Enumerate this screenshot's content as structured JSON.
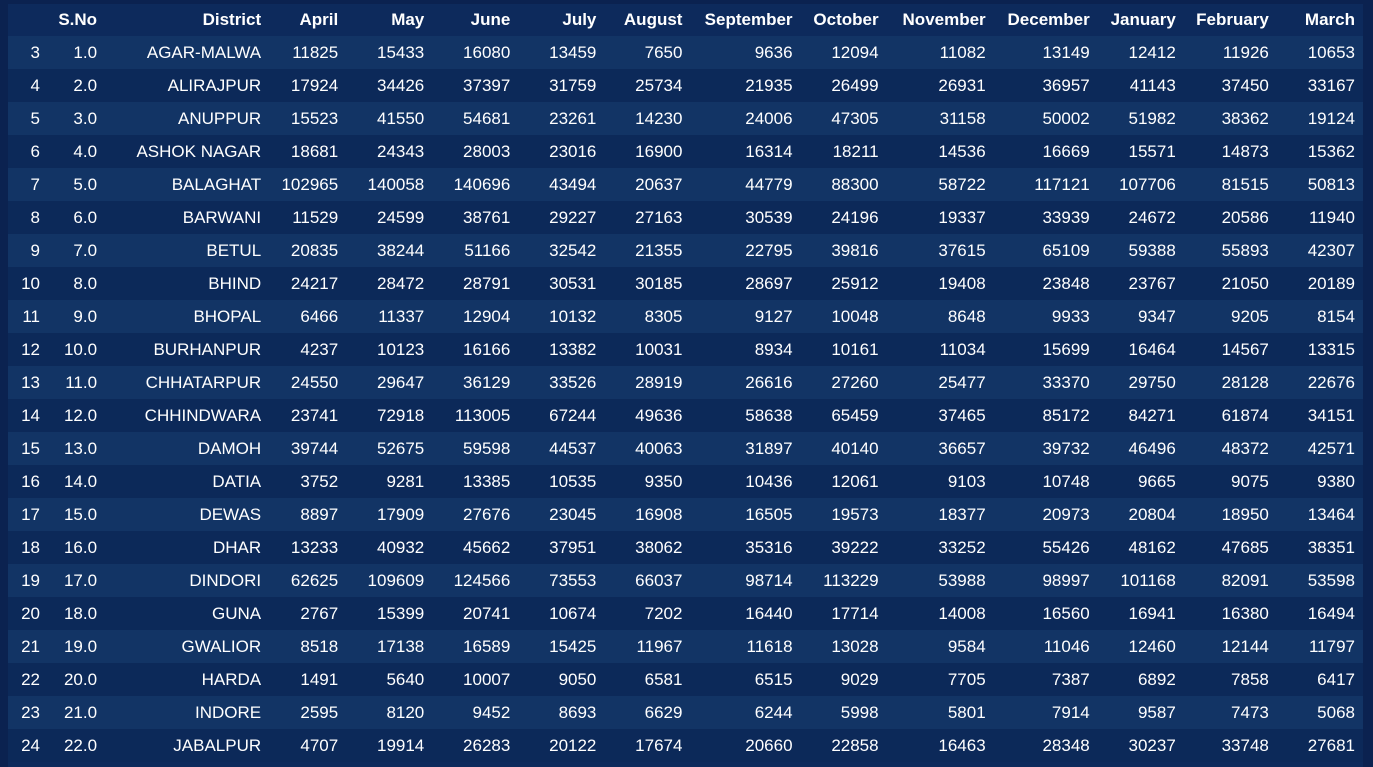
{
  "table": {
    "columns": [
      "",
      "S.No",
      "District",
      "April",
      "May",
      "June",
      "July",
      "August",
      "September",
      "October",
      "November",
      "December",
      "January",
      "February",
      "March"
    ],
    "rows": [
      [
        "3",
        "1.0",
        "AGAR-MALWA",
        "11825",
        "15433",
        "16080",
        "13459",
        "7650",
        "9636",
        "12094",
        "11082",
        "13149",
        "12412",
        "11926",
        "10653"
      ],
      [
        "4",
        "2.0",
        "ALIRAJPUR",
        "17924",
        "34426",
        "37397",
        "31759",
        "25734",
        "21935",
        "26499",
        "26931",
        "36957",
        "41143",
        "37450",
        "33167"
      ],
      [
        "5",
        "3.0",
        "ANUPPUR",
        "15523",
        "41550",
        "54681",
        "23261",
        "14230",
        "24006",
        "47305",
        "31158",
        "50002",
        "51982",
        "38362",
        "19124"
      ],
      [
        "6",
        "4.0",
        "ASHOK NAGAR",
        "18681",
        "24343",
        "28003",
        "23016",
        "16900",
        "16314",
        "18211",
        "14536",
        "16669",
        "15571",
        "14873",
        "15362"
      ],
      [
        "7",
        "5.0",
        "BALAGHAT",
        "102965",
        "140058",
        "140696",
        "43494",
        "20637",
        "44779",
        "88300",
        "58722",
        "117121",
        "107706",
        "81515",
        "50813"
      ],
      [
        "8",
        "6.0",
        "BARWANI",
        "11529",
        "24599",
        "38761",
        "29227",
        "27163",
        "30539",
        "24196",
        "19337",
        "33939",
        "24672",
        "20586",
        "11940"
      ],
      [
        "9",
        "7.0",
        "BETUL",
        "20835",
        "38244",
        "51166",
        "32542",
        "21355",
        "22795",
        "39816",
        "37615",
        "65109",
        "59388",
        "55893",
        "42307"
      ],
      [
        "10",
        "8.0",
        "BHIND",
        "24217",
        "28472",
        "28791",
        "30531",
        "30185",
        "28697",
        "25912",
        "19408",
        "23848",
        "23767",
        "21050",
        "20189"
      ],
      [
        "11",
        "9.0",
        "BHOPAL",
        "6466",
        "11337",
        "12904",
        "10132",
        "8305",
        "9127",
        "10048",
        "8648",
        "9933",
        "9347",
        "9205",
        "8154"
      ],
      [
        "12",
        "10.0",
        "BURHANPUR",
        "4237",
        "10123",
        "16166",
        "13382",
        "10031",
        "8934",
        "10161",
        "11034",
        "15699",
        "16464",
        "14567",
        "13315"
      ],
      [
        "13",
        "11.0",
        "CHHATARPUR",
        "24550",
        "29647",
        "36129",
        "33526",
        "28919",
        "26616",
        "27260",
        "25477",
        "33370",
        "29750",
        "28128",
        "22676"
      ],
      [
        "14",
        "12.0",
        "CHHINDWARA",
        "23741",
        "72918",
        "113005",
        "67244",
        "49636",
        "58638",
        "65459",
        "37465",
        "85172",
        "84271",
        "61874",
        "34151"
      ],
      [
        "15",
        "13.0",
        "DAMOH",
        "39744",
        "52675",
        "59598",
        "44537",
        "40063",
        "31897",
        "40140",
        "36657",
        "39732",
        "46496",
        "48372",
        "42571"
      ],
      [
        "16",
        "14.0",
        "DATIA",
        "3752",
        "9281",
        "13385",
        "10535",
        "9350",
        "10436",
        "12061",
        "9103",
        "10748",
        "9665",
        "9075",
        "9380"
      ],
      [
        "17",
        "15.0",
        "DEWAS",
        "8897",
        "17909",
        "27676",
        "23045",
        "16908",
        "16505",
        "19573",
        "18377",
        "20973",
        "20804",
        "18950",
        "13464"
      ],
      [
        "18",
        "16.0",
        "DHAR",
        "13233",
        "40932",
        "45662",
        "37951",
        "38062",
        "35316",
        "39222",
        "33252",
        "55426",
        "48162",
        "47685",
        "38351"
      ],
      [
        "19",
        "17.0",
        "DINDORI",
        "62625",
        "109609",
        "124566",
        "73553",
        "66037",
        "98714",
        "113229",
        "53988",
        "98997",
        "101168",
        "82091",
        "53598"
      ],
      [
        "20",
        "18.0",
        "GUNA",
        "2767",
        "15399",
        "20741",
        "10674",
        "7202",
        "16440",
        "17714",
        "14008",
        "16560",
        "16941",
        "16380",
        "16494"
      ],
      [
        "21",
        "19.0",
        "GWALIOR",
        "8518",
        "17138",
        "16589",
        "15425",
        "11967",
        "11618",
        "13028",
        "9584",
        "11046",
        "12460",
        "12144",
        "11797"
      ],
      [
        "22",
        "20.0",
        "HARDA",
        "1491",
        "5640",
        "10007",
        "9050",
        "6581",
        "6515",
        "9029",
        "7705",
        "7387",
        "6892",
        "7858",
        "6417"
      ],
      [
        "23",
        "21.0",
        "INDORE",
        "2595",
        "8120",
        "9452",
        "8693",
        "6629",
        "6244",
        "5998",
        "5801",
        "7914",
        "9587",
        "7473",
        "5068"
      ],
      [
        "24",
        "22.0",
        "JABALPUR",
        "4707",
        "19914",
        "26283",
        "20122",
        "17674",
        "20660",
        "22858",
        "16463",
        "28348",
        "30237",
        "33748",
        "27681"
      ]
    ]
  }
}
